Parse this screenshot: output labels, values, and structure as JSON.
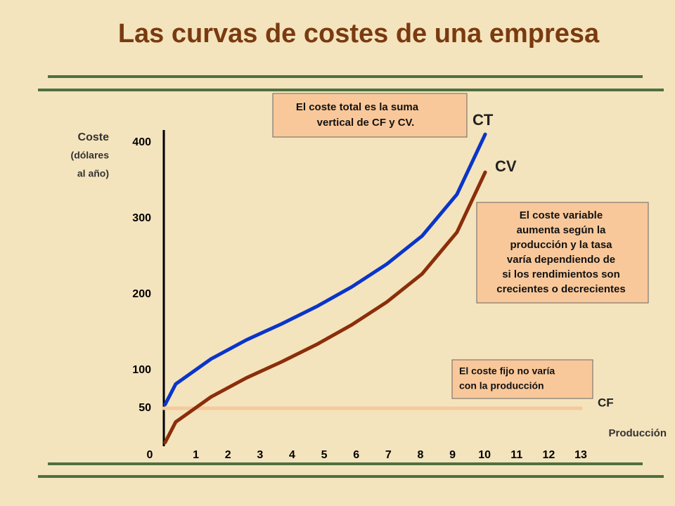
{
  "chart_data": {
    "type": "line",
    "title": "Las curvas de costes de una empresa",
    "y_label": [
      "Coste",
      "(dólares",
      "al año)"
    ],
    "x_label": "Producción",
    "xlim": [
      0,
      13
    ],
    "xticks": [
      0,
      1,
      2,
      3,
      4,
      5,
      6,
      7,
      8,
      9,
      10,
      11,
      12,
      13
    ],
    "ylim": [
      0,
      400
    ],
    "yticks": [
      50,
      100,
      200,
      300,
      400
    ],
    "series": [
      {
        "name": "CT",
        "color": "#0a35c8",
        "x": [
          0.04,
          0.37,
          1.47,
          2.57,
          3.66,
          4.76,
          5.86,
          6.95,
          8.05,
          9.14,
          10.02
        ],
        "values": [
          55,
          82,
          115,
          140,
          161,
          184,
          210,
          240,
          277,
          332,
          411
        ]
      },
      {
        "name": "CV",
        "color": "#8b2e0a",
        "x": [
          0.04,
          0.37,
          1.47,
          2.57,
          3.66,
          4.76,
          5.86,
          6.95,
          8.05,
          9.14,
          10.02
        ],
        "values": [
          5,
          32,
          65,
          90,
          111,
          134,
          160,
          190,
          227,
          282,
          361
        ]
      },
      {
        "name": "CF",
        "color": "#f5c99a",
        "x": [
          0,
          13
        ],
        "values": [
          50,
          50
        ]
      }
    ],
    "annotations": [
      [
        "El coste total es la suma",
        "vertical de CF y CV."
      ],
      [
        "El coste variable",
        "aumenta según la",
        "producción y la tasa",
        "varía dependiendo de",
        "si los rendimientos son",
        "crecientes o decrecientes"
      ],
      [
        "El coste fijo no varía",
        "con la producción"
      ]
    ]
  }
}
